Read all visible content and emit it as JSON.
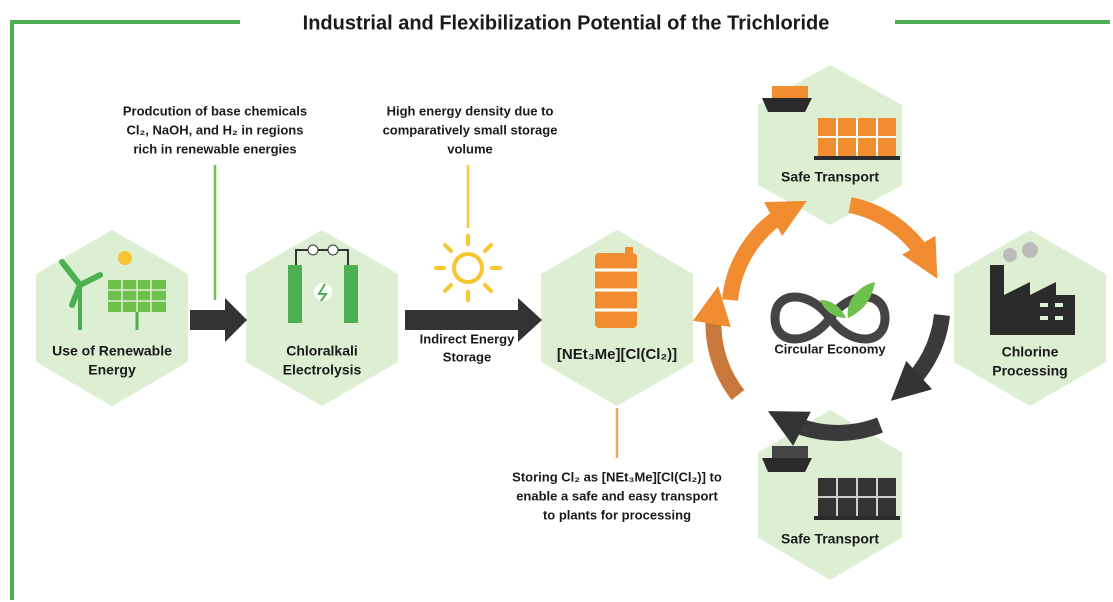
{
  "title": "Industrial and Flexibilization Potential of the Trichloride",
  "nodes": [
    {
      "label_lines": [
        "Use of Renewable",
        "Energy"
      ]
    },
    {
      "label_lines": [
        "Chloralkali",
        "Electrolysis"
      ]
    },
    {
      "label_lines": [
        "[NEt₃Me][Cl(Cl₂)]"
      ]
    },
    {
      "label_lines": [
        "Safe Transport"
      ]
    },
    {
      "label_lines": [
        "Chlorine",
        "Processing"
      ]
    },
    {
      "label_lines": [
        "Safe Transport"
      ]
    }
  ],
  "center_label": "Circular Economy",
  "arrow_label_lines": [
    "Indirect Energy",
    "Storage"
  ],
  "annotations": [
    {
      "lines": [
        "Prodcution of base chemicals",
        "Cl₂, NaOH, and H₂ in regions",
        "rich in renewable energies"
      ]
    },
    {
      "lines": [
        "High energy density due to",
        "comparatively small storage",
        "volume"
      ]
    },
    {
      "lines": [
        "Storing Cl₂ as [NEt₃Me][Cl(Cl₂)] to",
        "enable a safe and easy transport",
        "to plants for processing"
      ]
    }
  ]
}
